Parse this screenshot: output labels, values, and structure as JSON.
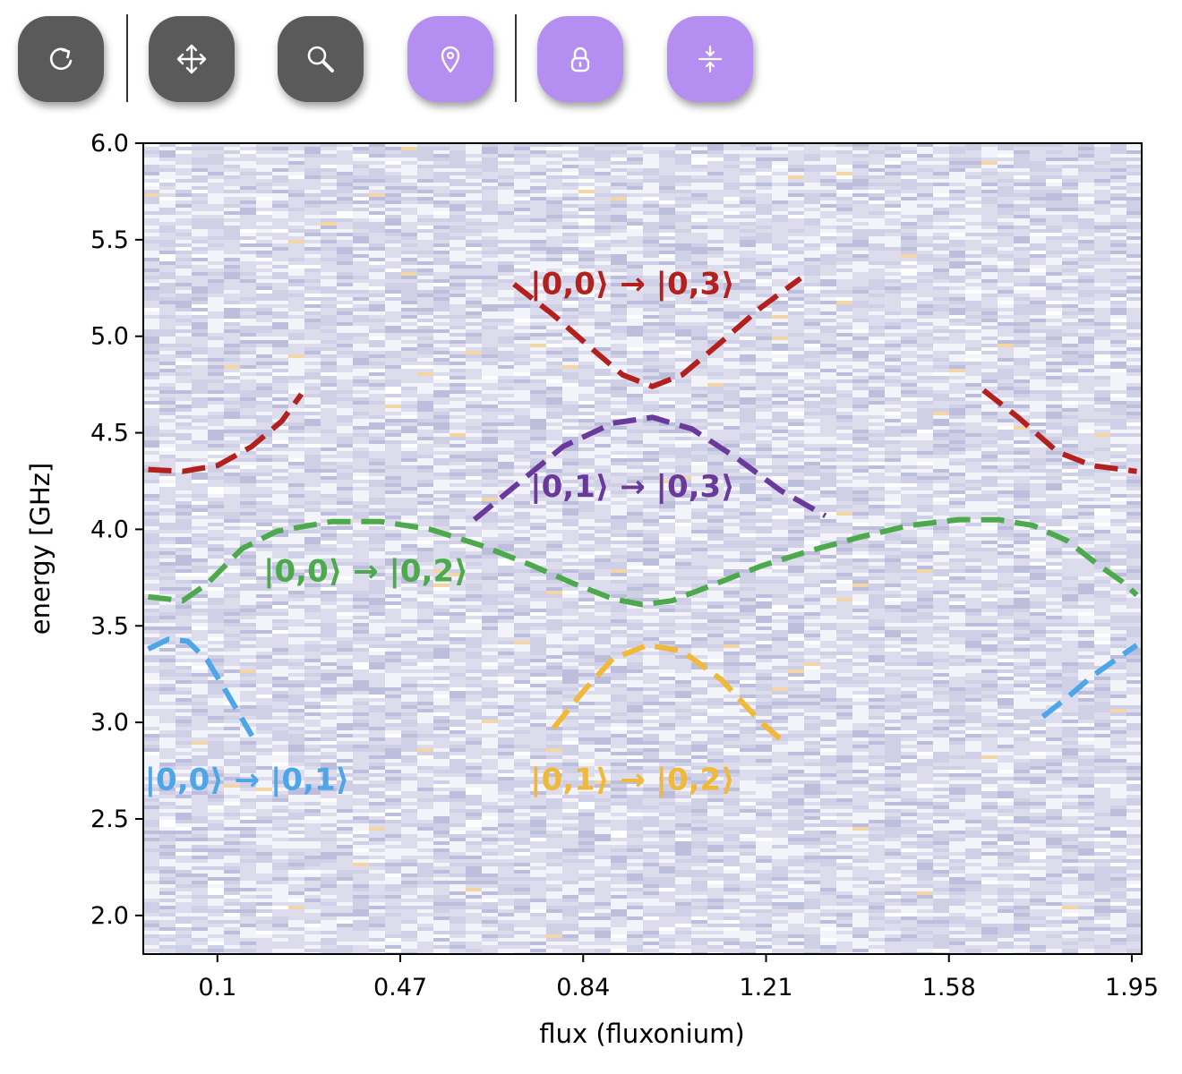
{
  "toolbar": {
    "buttons": [
      {
        "name": "reset-button",
        "icon": "refresh-icon",
        "style": "dark"
      },
      {
        "name": "pan-button",
        "icon": "move-arrows-icon",
        "style": "dark"
      },
      {
        "name": "zoom-button",
        "icon": "magnifier-icon",
        "style": "dark"
      },
      {
        "name": "select-point-button",
        "icon": "map-pin-icon",
        "style": "purple"
      },
      {
        "name": "lock-button",
        "icon": "lock-icon",
        "style": "purple"
      },
      {
        "name": "compress-button",
        "icon": "compress-vertical-icon",
        "style": "purple"
      }
    ]
  },
  "chart_data": {
    "type": "heatmap",
    "title": "",
    "xlabel": "flux (fluxonium)",
    "ylabel": "energy [GHz]",
    "xlim": [
      -0.05,
      1.97
    ],
    "ylim": [
      1.8,
      6.0
    ],
    "xticks": [
      0.1,
      0.47,
      0.84,
      1.21,
      1.58,
      1.95
    ],
    "xtick_labels": [
      "0.1",
      "0.47",
      "0.84",
      "1.21",
      "1.58",
      "1.95"
    ],
    "yticks": [
      2.0,
      2.5,
      3.0,
      3.5,
      4.0,
      4.5,
      5.0,
      5.5,
      6.0
    ],
    "ytick_labels": [
      "2.0",
      "2.5",
      "3.0",
      "3.5",
      "4.0",
      "4.5",
      "5.0",
      "5.5",
      "6.0"
    ],
    "background": "noisy spectroscopy heatmap (lavender/white)",
    "series": [
      {
        "label": "|0,0⟩ → |0,1⟩",
        "color": "#4da6e8",
        "segments": [
          [
            [
              -0.04,
              3.38
            ],
            [
              0.0,
              3.43
            ],
            [
              0.04,
              3.42
            ],
            [
              0.08,
              3.32
            ],
            [
              0.12,
              3.15
            ],
            [
              0.17,
              2.93
            ]
          ],
          [
            [
              1.77,
              3.03
            ],
            [
              1.82,
              3.13
            ],
            [
              1.87,
              3.24
            ],
            [
              1.92,
              3.33
            ],
            [
              1.96,
              3.4
            ]
          ]
        ]
      },
      {
        "label": "|0,0⟩ → |0,2⟩",
        "color": "#4caa4c",
        "segments": [
          [
            [
              -0.04,
              3.65
            ],
            [
              0.03,
              3.63
            ],
            [
              0.08,
              3.72
            ],
            [
              0.15,
              3.9
            ],
            [
              0.22,
              3.99
            ],
            [
              0.33,
              4.04
            ],
            [
              0.43,
              4.04
            ],
            [
              0.53,
              4.0
            ],
            [
              0.63,
              3.92
            ],
            [
              0.73,
              3.82
            ],
            [
              0.82,
              3.72
            ],
            [
              0.9,
              3.64
            ],
            [
              0.96,
              3.61
            ],
            [
              1.02,
              3.63
            ],
            [
              1.1,
              3.71
            ],
            [
              1.2,
              3.81
            ],
            [
              1.3,
              3.89
            ],
            [
              1.4,
              3.96
            ],
            [
              1.5,
              4.02
            ],
            [
              1.6,
              4.05
            ],
            [
              1.68,
              4.05
            ],
            [
              1.75,
              4.02
            ],
            [
              1.82,
              3.94
            ],
            [
              1.88,
              3.82
            ],
            [
              1.93,
              3.73
            ],
            [
              1.96,
              3.66
            ]
          ]
        ]
      },
      {
        "label": "|0,0⟩ → |0,3⟩",
        "color": "#b3211e",
        "segments": [
          [
            [
              -0.04,
              4.31
            ],
            [
              0.03,
              4.3
            ],
            [
              0.1,
              4.33
            ],
            [
              0.17,
              4.43
            ],
            [
              0.23,
              4.56
            ],
            [
              0.27,
              4.7
            ]
          ],
          [
            [
              0.7,
              5.27
            ],
            [
              0.78,
              5.11
            ],
            [
              0.86,
              4.93
            ],
            [
              0.92,
              4.8
            ],
            [
              0.98,
              4.74
            ],
            [
              1.04,
              4.8
            ],
            [
              1.11,
              4.95
            ],
            [
              1.2,
              5.15
            ],
            [
              1.28,
              5.3
            ]
          ],
          [
            [
              1.65,
              4.72
            ],
            [
              1.72,
              4.58
            ],
            [
              1.8,
              4.4
            ],
            [
              1.87,
              4.33
            ],
            [
              1.96,
              4.3
            ]
          ]
        ]
      },
      {
        "label": "|0,1⟩ → |0,3⟩",
        "color": "#6a3a9a",
        "segments": [
          [
            [
              0.62,
              4.05
            ],
            [
              0.7,
              4.22
            ],
            [
              0.8,
              4.43
            ],
            [
              0.9,
              4.55
            ],
            [
              0.98,
              4.58
            ],
            [
              1.06,
              4.52
            ],
            [
              1.15,
              4.37
            ],
            [
              1.24,
              4.2
            ],
            [
              1.33,
              4.07
            ]
          ]
        ]
      },
      {
        "label": "|0,1⟩ → |0,2⟩",
        "color": "#f0b93a",
        "segments": [
          [
            [
              0.78,
              2.97
            ],
            [
              0.84,
              3.16
            ],
            [
              0.9,
              3.33
            ],
            [
              0.97,
              3.4
            ],
            [
              1.04,
              3.37
            ],
            [
              1.12,
              3.22
            ],
            [
              1.2,
              3.0
            ],
            [
              1.25,
              2.89
            ]
          ]
        ]
      }
    ],
    "annotations": [
      {
        "text": "|0,0⟩ → |0,3⟩",
        "color": "#b3211e",
        "x": 0.94,
        "y": 5.22
      },
      {
        "text": "|0,1⟩ → |0,3⟩",
        "color": "#6a3a9a",
        "x": 0.94,
        "y": 4.17
      },
      {
        "text": "|0,0⟩ → |0,2⟩",
        "color": "#4caa4c",
        "x": 0.4,
        "y": 3.73
      },
      {
        "text": "|0,0⟩ → |0,1⟩",
        "color": "#4da6e8",
        "x": 0.16,
        "y": 2.65
      },
      {
        "text": "|0,1⟩ → |0,2⟩",
        "color": "#f0b93a",
        "x": 0.94,
        "y": 2.65
      }
    ]
  }
}
